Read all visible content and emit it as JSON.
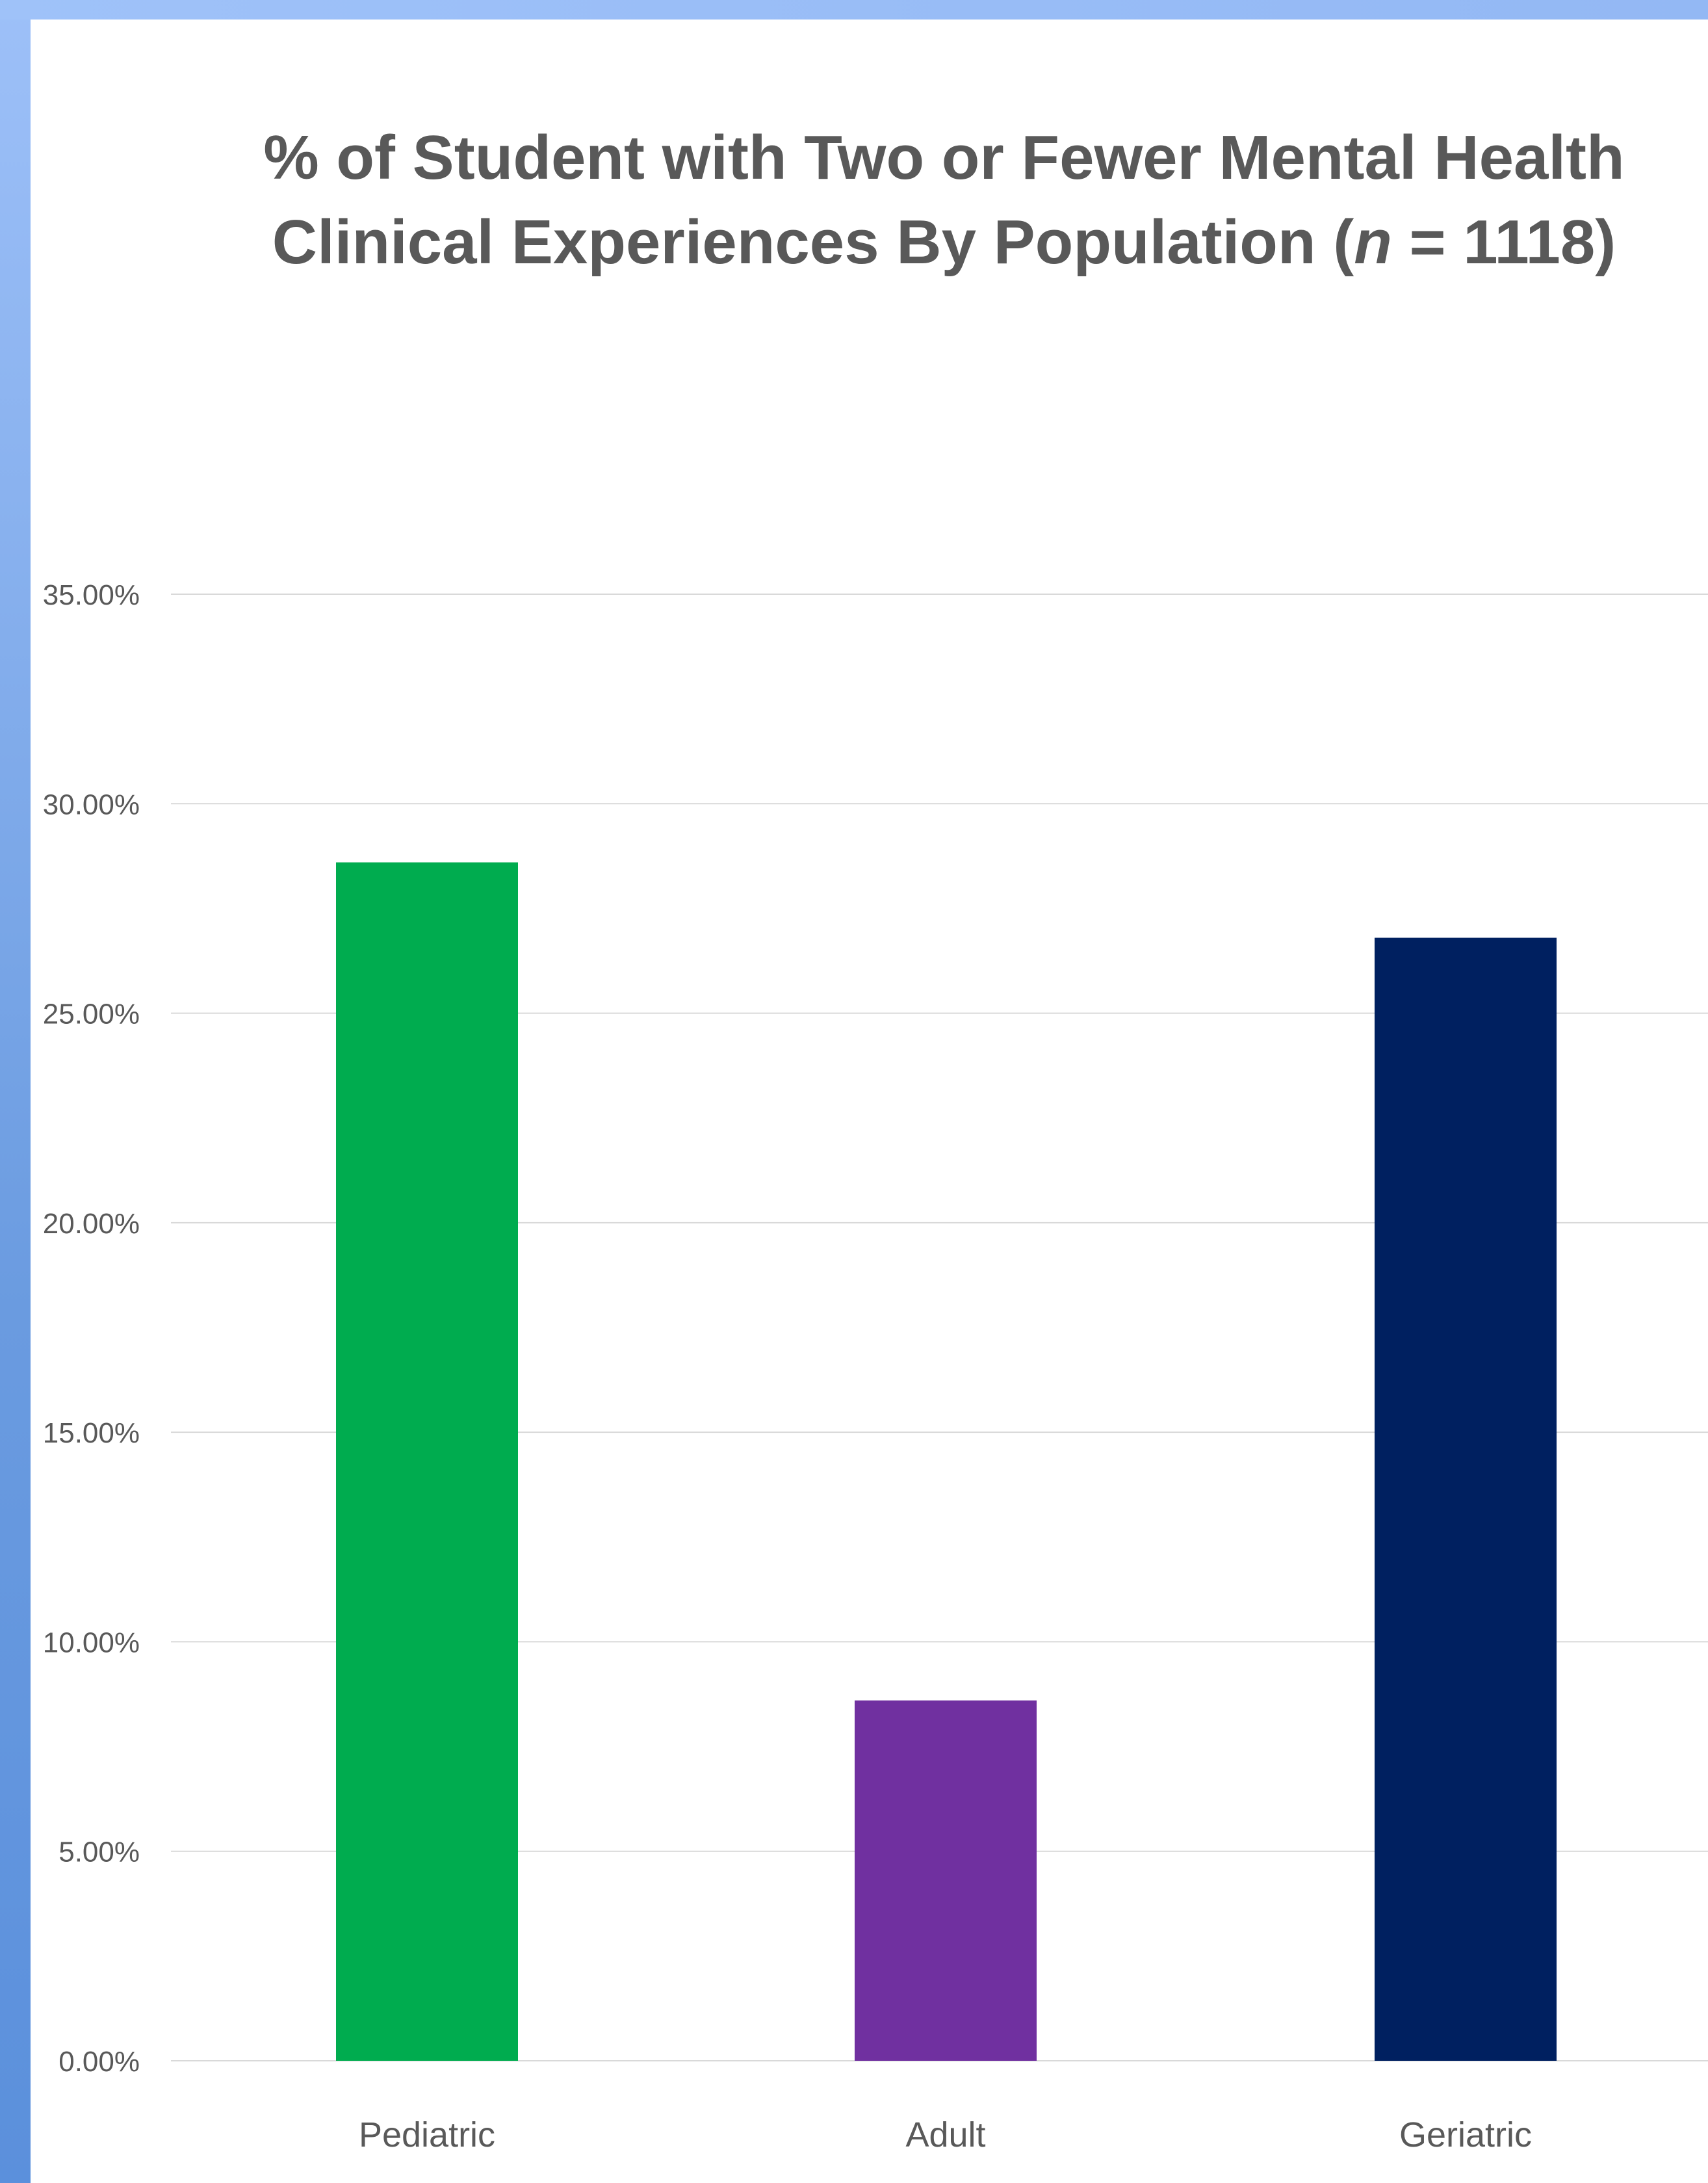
{
  "chart_data": {
    "type": "bar",
    "title_parts": {
      "line1": "% of Student with Two or  Fewer  Mental Health",
      "line2_pre": "Clinical Experiences By Population (",
      "line2_italic": "n",
      "line2_post": " = 1118)"
    },
    "categories": [
      "Pediatric",
      "Adult",
      "Geriatric"
    ],
    "values": [
      28.6,
      8.6,
      26.8
    ],
    "bar_colors": [
      "#00ac4f",
      "#7030a0",
      "#002060"
    ],
    "ylim": [
      0,
      35
    ],
    "ytick_step": 5,
    "ytick_labels": [
      "0.00%",
      "5.00%",
      "10.00%",
      "15.00%",
      "20.00%",
      "25.00%",
      "30.00%",
      "35.00%"
    ],
    "grid": true,
    "legend": "none"
  },
  "colors": {
    "text": "#595959",
    "gridline": "#d9d9d9",
    "frame_accent": "#7aa6ea"
  }
}
